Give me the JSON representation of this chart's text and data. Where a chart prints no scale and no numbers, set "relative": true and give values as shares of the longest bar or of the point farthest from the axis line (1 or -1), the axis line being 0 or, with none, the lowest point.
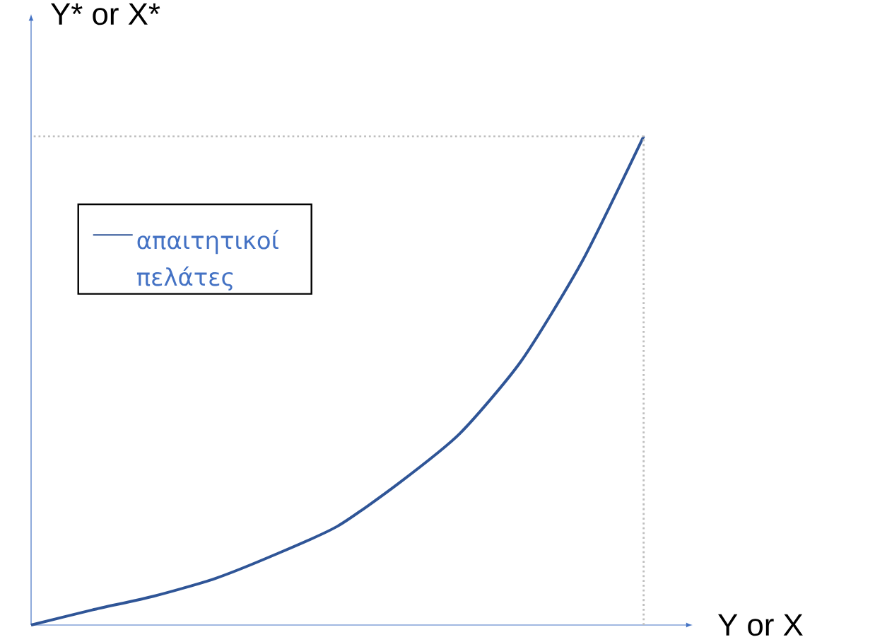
{
  "chart_data": {
    "type": "line",
    "relative": true,
    "xlabel": "Y or X",
    "ylabel": "Y* or X*",
    "categories": [
      null,
      null,
      null,
      null,
      null,
      null,
      null,
      null,
      null,
      null,
      null
    ],
    "series": [
      {
        "name": "απαιτητικοί πελάτες",
        "color": "#2f5597",
        "values": [
          0,
          0.031,
          0.059,
          0.095,
          0.145,
          0.202,
          0.29,
          0.392,
          0.54,
          0.745,
          1
        ]
      }
    ],
    "legend": "top left",
    "marker": "none",
    "line_style": "solid"
  }
}
